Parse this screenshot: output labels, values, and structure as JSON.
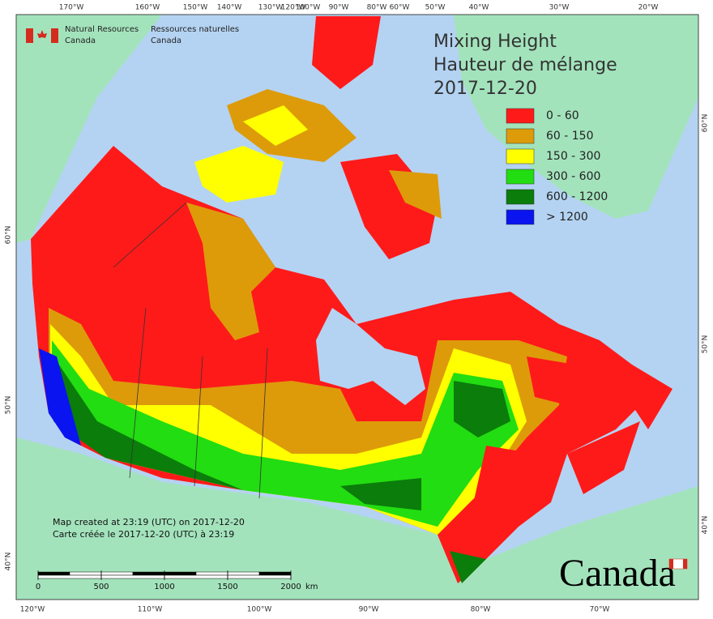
{
  "header": {
    "dept_en": "Natural Resources",
    "country_en": "Canada",
    "dept_fr": "Ressources naturelles",
    "country_fr": "Canada"
  },
  "title": {
    "line1": "Mixing Height",
    "line2": "Hauteur de mélange",
    "date": "2017-12-20"
  },
  "legend": [
    {
      "label": "0 - 60",
      "color": "#ff1a1a"
    },
    {
      "label": "60 - 150",
      "color": "#dd9b0a"
    },
    {
      "label": "150 - 300",
      "color": "#ffff00"
    },
    {
      "label": "300 - 600",
      "color": "#22dd11"
    },
    {
      "label": "600 - 1200",
      "color": "#0a7d0a"
    },
    {
      "label": "> 1200",
      "color": "#0a14f0"
    }
  ],
  "graticule": {
    "top": [
      "170°W",
      "160°W",
      "150°W",
      "140°W",
      "130°W",
      "120°W",
      "100°W",
      "90°W",
      "80°W",
      "60°W",
      "50°W",
      "40°W",
      "30°W",
      "20°W"
    ],
    "bottom": [
      "120°W",
      "110°W",
      "100°W",
      "90°W",
      "80°W",
      "70°W"
    ],
    "left": [
      "60°N",
      "50°N",
      "40°N"
    ],
    "right": [
      "60°N",
      "50°N",
      "40°N"
    ]
  },
  "notes": {
    "line1": "Map created at 23:19 (UTC) on 2017-12-20",
    "line2": "Carte créée le 2017-12-20 (UTC) à 23:19"
  },
  "scale_bar": {
    "ticks": [
      0,
      500,
      1000,
      1500,
      2000
    ],
    "unit": "km"
  },
  "wordmark": "Canada"
}
